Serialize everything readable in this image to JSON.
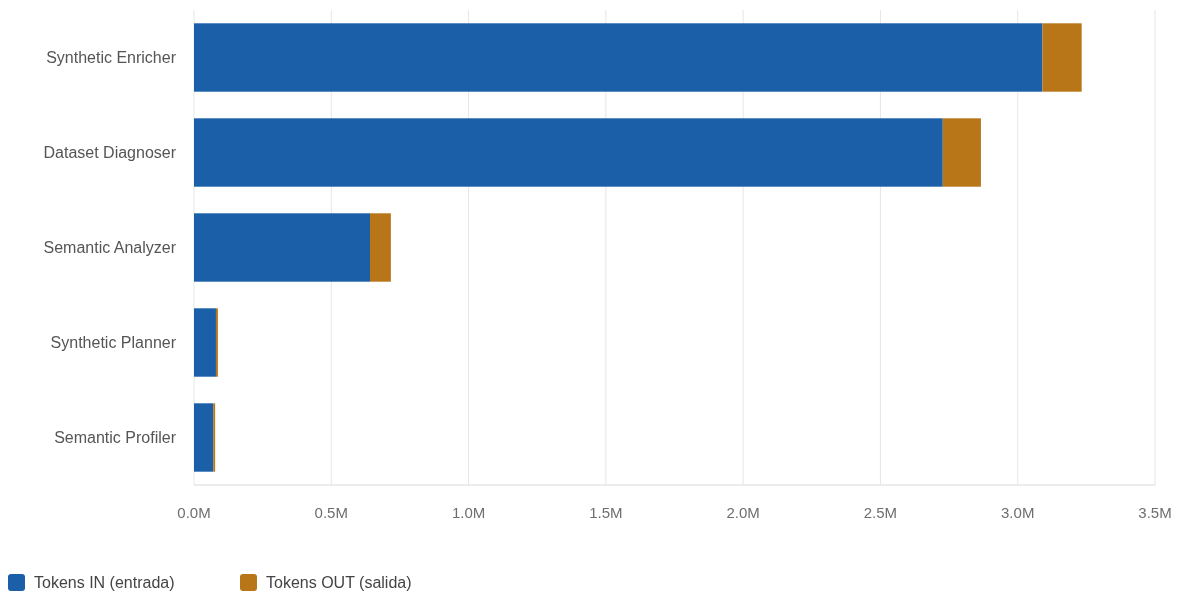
{
  "chart_data": {
    "type": "bar",
    "orientation": "horizontal",
    "stacked": true,
    "categories": [
      "Synthetic Enricher",
      "Dataset Diagnoser",
      "Semantic Analyzer",
      "Synthetic Planner",
      "Semantic Profiler"
    ],
    "series": [
      {
        "name": "Tokens IN (entrada)",
        "color": "#1a5fa8",
        "values": [
          3.09,
          2.727,
          0.641,
          0.08,
          0.07
        ]
      },
      {
        "name": "Tokens OUT (salida)",
        "color": "#b87619",
        "values": [
          0.143,
          0.139,
          0.076,
          0.007,
          0.007
        ]
      }
    ],
    "xlim": [
      0,
      3.5
    ],
    "xticks": [
      {
        "value": 0,
        "label": "0.0M"
      },
      {
        "value": 0.5,
        "label": "0.5M"
      },
      {
        "value": 1,
        "label": "1.0M"
      },
      {
        "value": 1.5,
        "label": "1.5M"
      },
      {
        "value": 2,
        "label": "2.0M"
      },
      {
        "value": 2.5,
        "label": "2.5M"
      },
      {
        "value": 3,
        "label": "3.0M"
      },
      {
        "value": 3.5,
        "label": "3.5M"
      }
    ],
    "grid": "x",
    "legend": "bottom left"
  }
}
